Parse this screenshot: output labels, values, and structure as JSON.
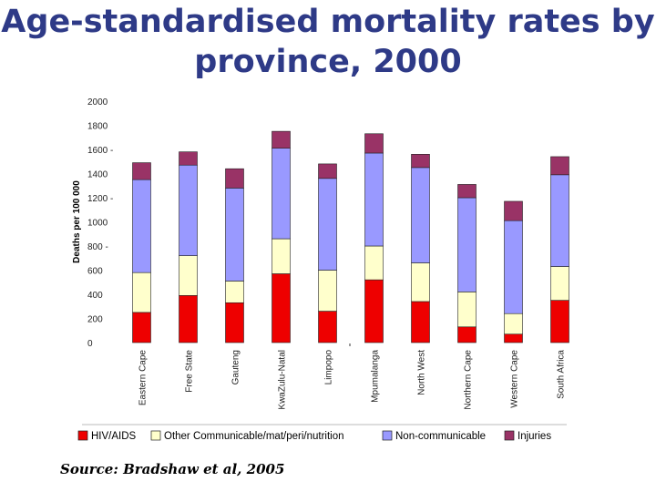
{
  "title": {
    "line1": "Age-standardised mortality rates by",
    "line2": "province, 2000"
  },
  "source": "Source: Bradshaw et al, 2005",
  "colors": {
    "title": "#2e3a87",
    "hiv": "#ee0000",
    "communicable": "#ffffcc",
    "noncommunicable": "#9999ff",
    "injuries": "#993366"
  },
  "chart_data": {
    "type": "bar",
    "stacked": true,
    "title": "Age-standardised mortality rates by province, 2000",
    "xlabel": "",
    "ylabel": "Deaths per 100 000",
    "ylim": [
      0,
      2000
    ],
    "yticks": [
      "0",
      "200",
      "400",
      "600",
      "800 -",
      "1000",
      "1200 -",
      "1400",
      "1600 -",
      "1800",
      "2000"
    ],
    "legend_position": "bottom",
    "categories": [
      "Eastern Cape",
      "Free State",
      "Gauteng",
      "KwaZulu-Natal",
      "Limpopo",
      "Mpumalanga",
      "North West",
      "Northern Cape",
      "Western Cape",
      "South Africa"
    ],
    "series": [
      {
        "name": "HIV/AIDS",
        "values": [
          250,
          390,
          330,
          570,
          260,
          520,
          340,
          130,
          70,
          350
        ]
      },
      {
        "name": "Other Communicable/mat/peri/nutrition",
        "values": [
          330,
          330,
          180,
          290,
          340,
          280,
          320,
          290,
          170,
          280
        ]
      },
      {
        "name": "Non-communicable",
        "values": [
          770,
          750,
          770,
          750,
          760,
          770,
          790,
          780,
          770,
          760
        ]
      },
      {
        "name": "Injuries",
        "values": [
          140,
          110,
          160,
          140,
          120,
          160,
          110,
          110,
          160,
          150
        ]
      }
    ]
  }
}
